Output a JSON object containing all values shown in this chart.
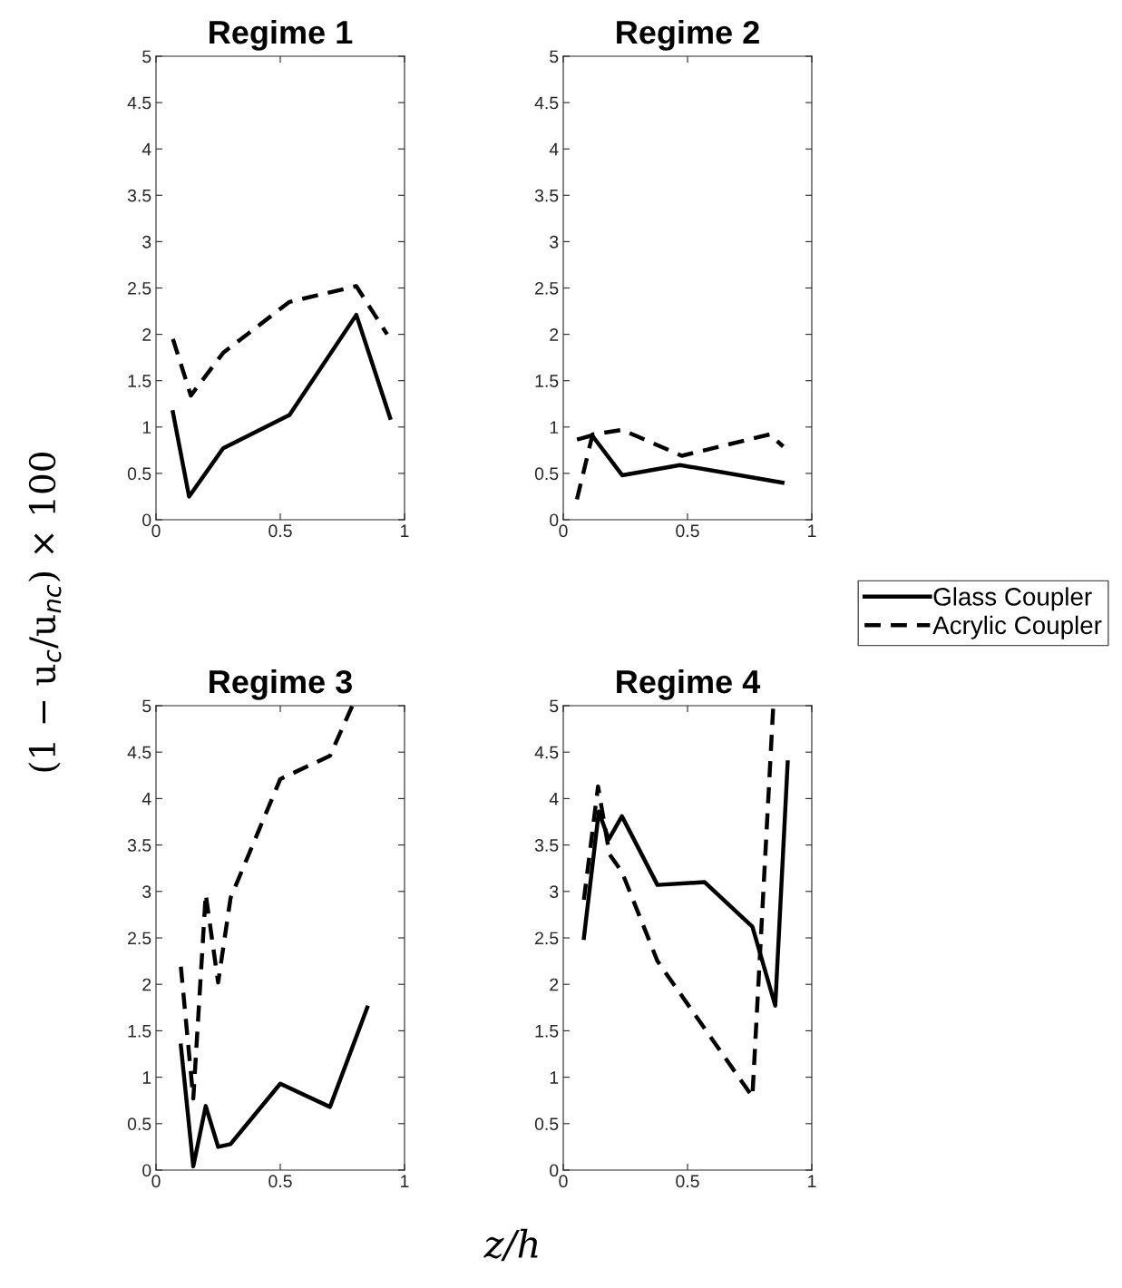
{
  "chart_data": [
    {
      "type": "line",
      "title": "Regime 1",
      "legend": "right",
      "ylabel": "(1 − u$_{c}$/u$_{nc}$) × 100",
      "xlim": [
        0,
        1
      ],
      "ylim": [
        0,
        5
      ],
      "xticks": [
        0,
        0.5,
        1
      ],
      "yticks": [
        0,
        0.5,
        1,
        1.5,
        2,
        2.5,
        3,
        3.5,
        4,
        4.5,
        5
      ],
      "grid": false,
      "series": [
        {
          "name": "Glass Coupler",
          "color": "#000000",
          "line_style": "solid",
          "x": [
            0.068,
            0.133,
            0.27,
            0.537,
            0.806,
            0.942
          ],
          "values": [
            1.16,
            0.25,
            0.77,
            1.13,
            2.21,
            1.1
          ]
        },
        {
          "name": "Acrylic Coupler",
          "color": "#000000",
          "line_style": "dashed",
          "x": [
            0.068,
            0.14,
            0.27,
            0.537,
            0.806,
            0.93
          ],
          "values": [
            1.95,
            1.34,
            1.8,
            2.35,
            2.52,
            2.0
          ]
        }
      ]
    },
    {
      "type": "line",
      "title": "Regime 2",
      "xlim": [
        0,
        1
      ],
      "ylim": [
        0,
        5
      ],
      "xticks": [
        0,
        0.5,
        1
      ],
      "yticks": [
        0,
        0.5,
        1,
        1.5,
        2,
        2.5,
        3,
        3.5,
        4,
        4.5,
        5
      ],
      "grid": false,
      "series": [
        {
          "color": "#000000",
          "line_style": "solid",
          "x": [
            0.063,
            0.116,
            0.237,
            0.47,
            0.882
          ],
          "values": [
            0.87,
            0.91,
            0.48,
            0.59,
            0.4
          ]
        },
        {
          "color": "#000000",
          "line_style": "dashed",
          "x": [
            0.055,
            0.118,
            0.237,
            0.477,
            0.83,
            0.885
          ],
          "values": [
            0.22,
            0.92,
            0.97,
            0.69,
            0.92,
            0.79
          ]
        }
      ]
    },
    {
      "type": "line",
      "title": "Regime 3",
      "xlabel": "z/h",
      "xlim": [
        0,
        1
      ],
      "ylim": [
        0,
        5
      ],
      "xticks": [
        0,
        0.5,
        1
      ],
      "yticks": [
        0,
        0.5,
        1,
        1.5,
        2,
        2.5,
        3,
        3.5,
        4,
        4.5,
        5
      ],
      "grid": false,
      "series": [
        {
          "color": "#000000",
          "line_style": "solid",
          "x": [
            0.1,
            0.15,
            0.2,
            0.25,
            0.3,
            0.5,
            0.7,
            0.85
          ],
          "values": [
            1.34,
            0.04,
            0.69,
            0.25,
            0.28,
            0.93,
            0.68,
            1.75
          ]
        },
        {
          "color": "#000000",
          "line_style": "dashed",
          "x": [
            0.1,
            0.15,
            0.2,
            0.25,
            0.3,
            0.5,
            0.7,
            0.79
          ],
          "values": [
            2.19,
            0.77,
            2.97,
            2.02,
            2.93,
            4.21,
            4.46,
            5.0
          ]
        }
      ]
    },
    {
      "type": "line",
      "title": "Regime 4",
      "xlim": [
        0,
        1
      ],
      "ylim": [
        0,
        5
      ],
      "xticks": [
        0,
        0.5,
        1
      ],
      "yticks": [
        0,
        0.5,
        1,
        1.5,
        2,
        2.5,
        3,
        3.5,
        4,
        4.5,
        5
      ],
      "grid": false,
      "series": [
        {
          "color": "#000000",
          "line_style": "solid",
          "x": [
            0.083,
            0.143,
            0.183,
            0.236,
            0.379,
            0.569,
            0.761,
            0.853,
            0.903
          ],
          "values": [
            2.5,
            3.86,
            3.56,
            3.81,
            3.07,
            3.1,
            2.62,
            1.77,
            4.39
          ]
        },
        {
          "color": "#000000",
          "line_style": "dashed",
          "x": [
            0.083,
            0.14,
            0.186,
            0.236,
            0.379,
            0.761,
            0.845
          ],
          "values": [
            2.91,
            4.13,
            3.4,
            3.21,
            2.25,
            0.79,
            5.0
          ]
        }
      ]
    }
  ]
}
